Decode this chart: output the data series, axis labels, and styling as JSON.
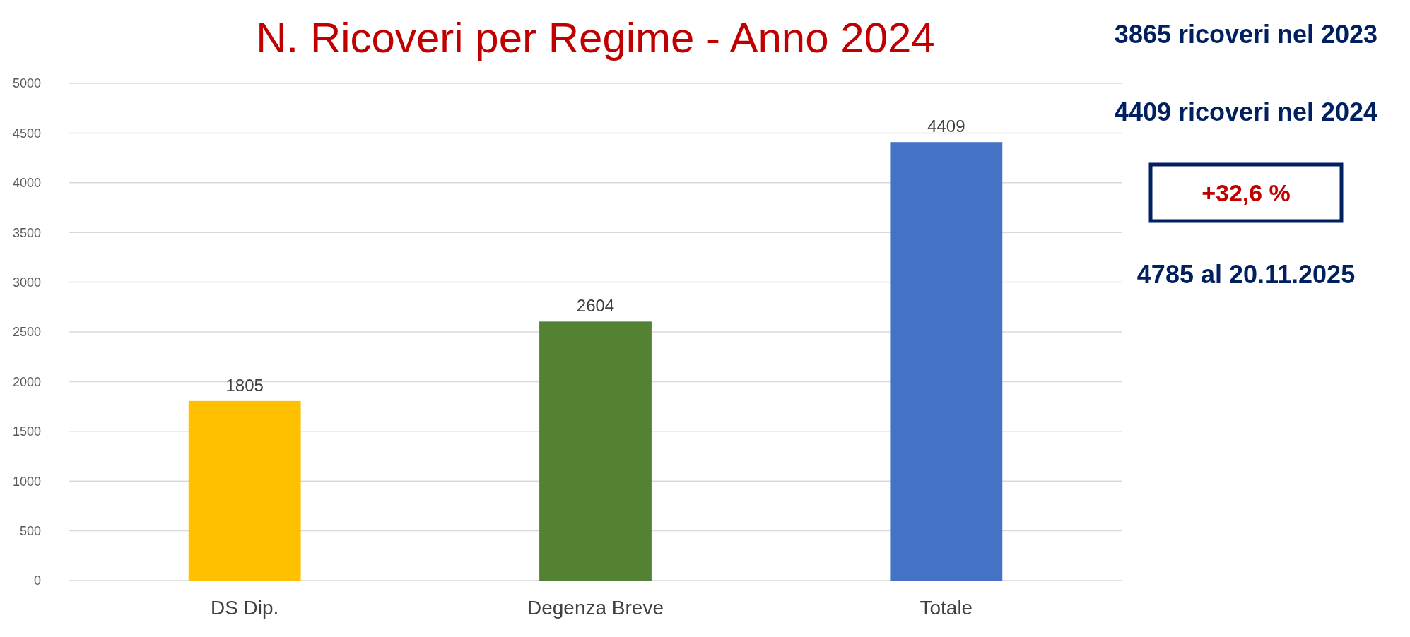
{
  "chart_data": {
    "type": "bar",
    "title": "N. Ricoveri per Regime - Anno 2024",
    "categories": [
      "DS Dip.",
      "Degenza Breve",
      "Totale"
    ],
    "values": [
      1805,
      2604,
      4409
    ],
    "colors": [
      "#ffc000",
      "#548235",
      "#4472c4"
    ],
    "ylim": [
      0,
      5000
    ],
    "yticks": [
      0,
      500,
      1000,
      1500,
      2000,
      2500,
      3000,
      3500,
      4000,
      4500,
      5000
    ],
    "grid": "y",
    "data_labels": true,
    "annotations": [
      "3865 ricoveri nel 2023",
      "4409 ricoveri nel 2024",
      "+32,6 %",
      "4785 al 20.11.2025"
    ]
  }
}
